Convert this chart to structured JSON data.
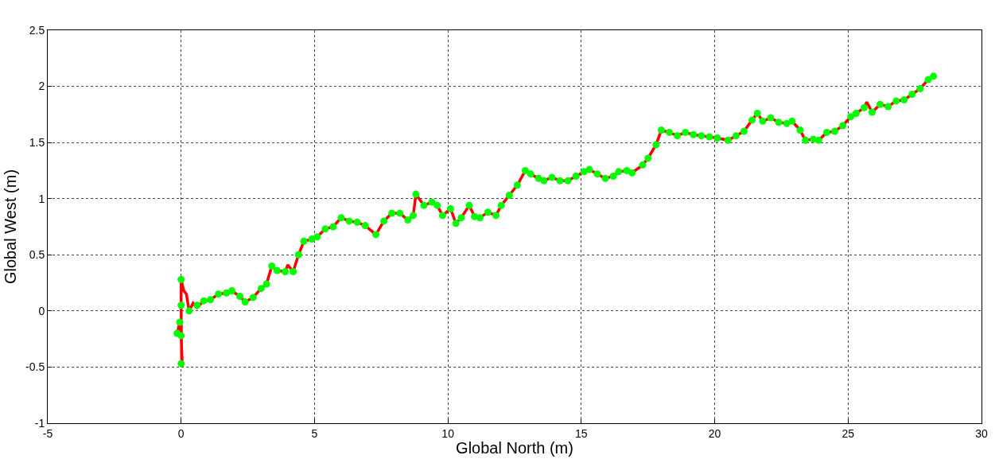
{
  "chart_data": {
    "type": "line",
    "xlabel": "Global North (m)",
    "ylabel": "Global West (m)",
    "xlim": [
      -5,
      30
    ],
    "ylim": [
      -1,
      2.5
    ],
    "xticks": [
      -5,
      0,
      5,
      10,
      15,
      20,
      25,
      30
    ],
    "yticks": [
      -1,
      -0.5,
      0,
      0.5,
      1,
      1.5,
      2,
      2.5
    ],
    "grid": true,
    "series": [
      {
        "marker": "none",
        "line_style": "solid",
        "color": "#ff0000",
        "x": [
          -0.15,
          -0.05,
          0,
          0.05,
          0.02,
          0,
          0,
          0.1,
          0.2,
          0.3,
          0.45,
          0.6,
          0.85,
          1.1,
          1.4,
          1.7,
          1.9,
          2.2,
          2.4,
          2.7,
          3.0,
          3.2,
          3.4,
          3.6,
          3.9,
          4.0,
          4.2,
          4.4,
          4.6,
          4.9,
          5.1,
          5.4,
          5.7,
          6.0,
          6.3,
          6.6,
          6.9,
          7.3,
          7.6,
          7.9,
          8.2,
          8.5,
          8.7,
          8.8,
          9.1,
          9.4,
          9.6,
          9.8,
          10.1,
          10.3,
          10.5,
          10.8,
          11.0,
          11.2,
          11.5,
          11.8,
          12.0,
          12.3,
          12.6,
          12.9,
          13.1,
          13.4,
          13.6,
          13.9,
          14.2,
          14.5,
          14.8,
          15.1,
          15.3,
          15.6,
          15.9,
          16.2,
          16.4,
          16.7,
          16.9,
          17.3,
          17.5,
          17.8,
          18.0,
          18.3,
          18.6,
          18.9,
          19.2,
          19.5,
          19.8,
          20.1,
          20.5,
          20.8,
          21.1,
          21.4,
          21.6,
          21.8,
          22.1,
          22.4,
          22.7,
          22.9,
          23.2,
          23.4,
          23.7,
          23.9,
          24.2,
          24.5,
          24.8,
          25.1,
          25.3,
          25.6,
          25.7,
          25.9,
          26.2,
          26.5,
          26.8,
          27.1,
          27.4,
          27.7,
          28.0,
          28.2
        ],
        "values": [
          -0.2,
          -0.1,
          -0.22,
          -0.5,
          -0.45,
          0.05,
          0.28,
          0.18,
          0.15,
          0.0,
          0.07,
          0.03,
          0.09,
          0.1,
          0.15,
          0.16,
          0.18,
          0.13,
          0.08,
          0.12,
          0.2,
          0.24,
          0.4,
          0.36,
          0.35,
          0.41,
          0.35,
          0.5,
          0.62,
          0.64,
          0.66,
          0.73,
          0.75,
          0.83,
          0.8,
          0.79,
          0.76,
          0.68,
          0.8,
          0.87,
          0.87,
          0.81,
          0.85,
          1.04,
          0.94,
          0.97,
          0.94,
          0.85,
          0.91,
          0.78,
          0.83,
          0.94,
          0.84,
          0.83,
          0.88,
          0.85,
          0.94,
          1.03,
          1.12,
          1.25,
          1.22,
          1.18,
          1.16,
          1.19,
          1.16,
          1.16,
          1.2,
          1.24,
          1.26,
          1.22,
          1.18,
          1.2,
          1.24,
          1.25,
          1.23,
          1.3,
          1.36,
          1.48,
          1.61,
          1.59,
          1.56,
          1.59,
          1.57,
          1.56,
          1.55,
          1.54,
          1.52,
          1.56,
          1.6,
          1.7,
          1.76,
          1.69,
          1.72,
          1.68,
          1.67,
          1.69,
          1.61,
          1.52,
          1.53,
          1.52,
          1.59,
          1.6,
          1.65,
          1.73,
          1.76,
          1.81,
          1.86,
          1.77,
          1.84,
          1.82,
          1.87,
          1.88,
          1.93,
          1.98,
          2.06,
          2.09
        ]
      },
      {
        "type": "scatter",
        "marker": "circle",
        "color": "#00ff00",
        "x": [
          -0.15,
          -0.05,
          0,
          0,
          0,
          0,
          0.3,
          0.6,
          0.85,
          1.1,
          1.4,
          1.7,
          1.9,
          2.2,
          2.4,
          2.7,
          3.0,
          3.2,
          3.4,
          3.6,
          3.9,
          4.2,
          4.4,
          4.6,
          4.9,
          5.1,
          5.4,
          5.7,
          6.0,
          6.3,
          6.6,
          6.9,
          7.3,
          7.6,
          7.9,
          8.2,
          8.5,
          8.7,
          8.8,
          9.1,
          9.4,
          9.6,
          9.8,
          10.1,
          10.3,
          10.5,
          10.8,
          11.0,
          11.2,
          11.5,
          11.8,
          12.0,
          12.3,
          12.6,
          12.9,
          13.1,
          13.4,
          13.6,
          13.9,
          14.2,
          14.5,
          14.8,
          15.1,
          15.3,
          15.6,
          15.9,
          16.2,
          16.4,
          16.7,
          16.9,
          17.3,
          17.5,
          17.8,
          18.0,
          18.3,
          18.6,
          18.9,
          19.2,
          19.5,
          19.8,
          20.1,
          20.5,
          20.8,
          21.1,
          21.4,
          21.6,
          21.8,
          22.1,
          22.4,
          22.7,
          22.9,
          23.2,
          23.4,
          23.7,
          23.9,
          24.2,
          24.5,
          24.8,
          25.1,
          25.3,
          25.6,
          25.9,
          26.2,
          26.5,
          26.8,
          27.1,
          27.4,
          27.7,
          28.0,
          28.2
        ],
        "values": [
          -0.2,
          -0.1,
          -0.22,
          -0.47,
          0.05,
          0.28,
          0.0,
          0.05,
          0.09,
          0.1,
          0.15,
          0.16,
          0.18,
          0.13,
          0.08,
          0.12,
          0.2,
          0.24,
          0.4,
          0.36,
          0.35,
          0.35,
          0.5,
          0.62,
          0.64,
          0.66,
          0.73,
          0.75,
          0.83,
          0.8,
          0.79,
          0.76,
          0.68,
          0.8,
          0.87,
          0.87,
          0.81,
          0.85,
          1.04,
          0.94,
          0.97,
          0.94,
          0.85,
          0.91,
          0.78,
          0.83,
          0.94,
          0.84,
          0.83,
          0.88,
          0.85,
          0.94,
          1.03,
          1.12,
          1.25,
          1.22,
          1.18,
          1.16,
          1.19,
          1.16,
          1.16,
          1.2,
          1.24,
          1.26,
          1.22,
          1.18,
          1.2,
          1.24,
          1.25,
          1.23,
          1.3,
          1.36,
          1.48,
          1.61,
          1.59,
          1.56,
          1.59,
          1.57,
          1.56,
          1.55,
          1.54,
          1.52,
          1.56,
          1.6,
          1.7,
          1.76,
          1.69,
          1.72,
          1.68,
          1.67,
          1.69,
          1.61,
          1.52,
          1.53,
          1.52,
          1.59,
          1.6,
          1.65,
          1.73,
          1.76,
          1.81,
          1.77,
          1.84,
          1.82,
          1.87,
          1.88,
          1.93,
          1.98,
          2.06,
          2.09
        ]
      }
    ]
  }
}
